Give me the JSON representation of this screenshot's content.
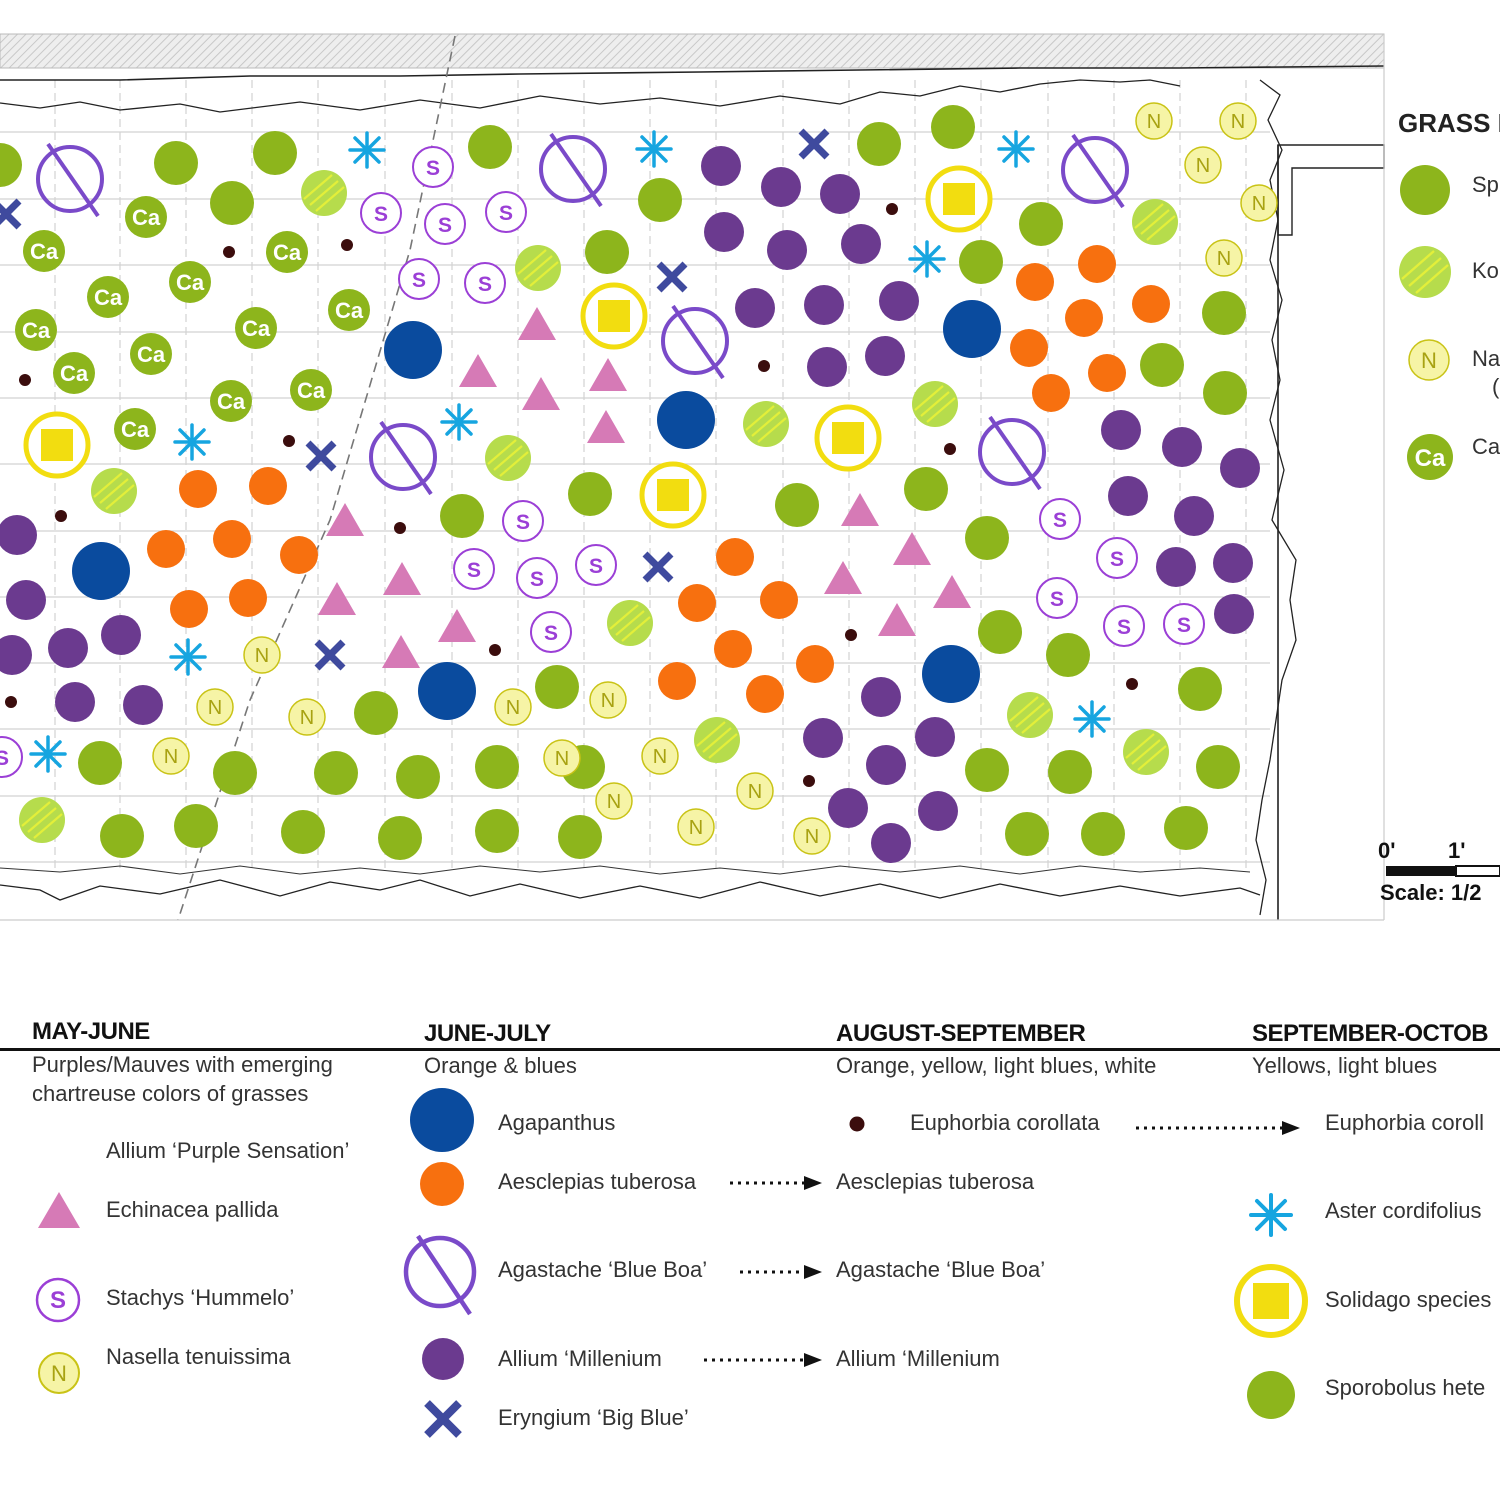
{
  "colors": {
    "sporobolus": "#8db51c",
    "koeleria": "#b6dc4c",
    "koeleria_stripe": "#e3ef3a",
    "nasella_fill": "#f6f4a6",
    "nasella_ring": "#c9c316",
    "stachys": "#9b3fd6",
    "agastache": "#7a4ac9",
    "allium_millenium": "#6b3a8f",
    "agapanthus": "#0a4b9e",
    "asclepias": "#f7700f",
    "echinacea": "#d67ab6",
    "eryngium": "#3f4a9e",
    "aster": "#16a5e0",
    "solidago": "#f2dd10",
    "euphorbia": "#3b0d0d"
  },
  "plan": {
    "grass_header": "GRASS I",
    "grass_legend": [
      {
        "symbol": "sporobolus",
        "label": "Sp"
      },
      {
        "symbol": "koeleria",
        "label": "Ko"
      },
      {
        "symbol": "nasella",
        "label": "Na",
        "extra": "("
      },
      {
        "symbol": "carex",
        "label": "Ca"
      }
    ],
    "symbol_text": {
      "stachys": "S",
      "nasella": "N",
      "carex": "Ca"
    },
    "scale": {
      "zero": "0'",
      "one": "1'",
      "text": "Scale:  1/2"
    }
  },
  "seasons": [
    {
      "title": "MAY-JUNE",
      "subtitle": [
        "Purples/Mauves with emerging",
        "chartreuse colors of grasses"
      ],
      "items": [
        {
          "symbol": "none",
          "label": "Allium ‘Purple Sensation’"
        },
        {
          "symbol": "echinacea",
          "label": "Echinacea pallida"
        },
        {
          "symbol": "stachys",
          "label": "Stachys ‘Hummelo’"
        },
        {
          "symbol": "nasella",
          "label": "Nasella tenuissima"
        }
      ]
    },
    {
      "title": "JUNE-JULY",
      "subtitle": [
        "Orange & blues"
      ],
      "items": [
        {
          "symbol": "agapanthus",
          "label": "Agapanthus"
        },
        {
          "symbol": "asclepias",
          "label": "Aesclepias tuberosa",
          "continues": true
        },
        {
          "symbol": "agastache",
          "label": "Agastache ‘Blue Boa’",
          "continues": true
        },
        {
          "symbol": "allium_millenium",
          "label": "Allium ‘Millenium",
          "continues": true
        },
        {
          "symbol": "eryngium",
          "label": "Eryngium ‘Big Blue’"
        }
      ]
    },
    {
      "title": "AUGUST-SEPTEMBER",
      "subtitle": [
        "Orange, yellow, light blues, white"
      ],
      "items": [
        {
          "symbol": "euphorbia",
          "label": "Euphorbia corollata",
          "continues": true
        },
        {
          "symbol": "none",
          "label": "Aesclepias tuberosa"
        },
        {
          "symbol": "none",
          "label": "Agastache ‘Blue Boa’"
        },
        {
          "symbol": "none",
          "label": "Allium ‘Millenium"
        }
      ]
    },
    {
      "title": "SEPTEMBER-OCTOB",
      "subtitle": [
        "Yellows, light blues"
      ],
      "items": [
        {
          "symbol": "none",
          "label": "Euphorbia coroll"
        },
        {
          "symbol": "aster",
          "label": "Aster cordifolius"
        },
        {
          "symbol": "solidago",
          "label": "Solidago species"
        },
        {
          "symbol": "sporobolus",
          "label": "Sporobolus hete"
        }
      ]
    }
  ]
}
